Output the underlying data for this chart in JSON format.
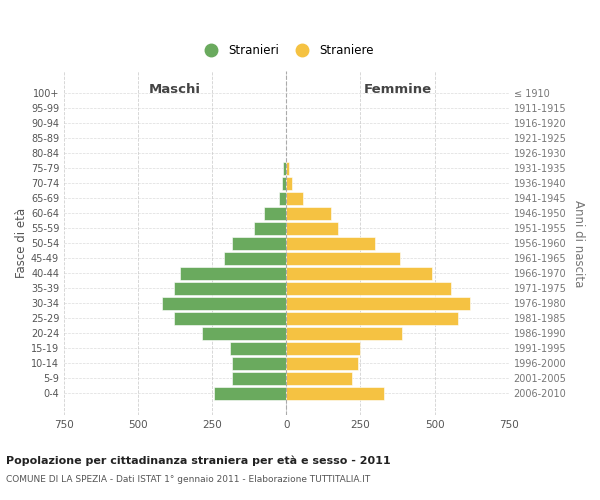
{
  "age_groups": [
    "0-4",
    "5-9",
    "10-14",
    "15-19",
    "20-24",
    "25-29",
    "30-34",
    "35-39",
    "40-44",
    "45-49",
    "50-54",
    "55-59",
    "60-64",
    "65-69",
    "70-74",
    "75-79",
    "80-84",
    "85-89",
    "90-94",
    "95-99",
    "100+"
  ],
  "birth_years": [
    "2006-2010",
    "2001-2005",
    "1996-2000",
    "1991-1995",
    "1986-1990",
    "1981-1985",
    "1976-1980",
    "1971-1975",
    "1966-1970",
    "1961-1965",
    "1956-1960",
    "1951-1955",
    "1946-1950",
    "1941-1945",
    "1936-1940",
    "1931-1935",
    "1926-1930",
    "1921-1925",
    "1916-1920",
    "1911-1915",
    "≤ 1910"
  ],
  "males": [
    245,
    185,
    185,
    190,
    285,
    380,
    420,
    380,
    360,
    210,
    185,
    110,
    75,
    25,
    15,
    10,
    0,
    0,
    0,
    0,
    0
  ],
  "females": [
    330,
    220,
    240,
    250,
    390,
    580,
    620,
    555,
    490,
    385,
    300,
    175,
    150,
    55,
    20,
    10,
    0,
    0,
    0,
    0,
    0
  ],
  "male_color": "#6aaa5e",
  "female_color": "#f5c242",
  "bar_edge_color": "white",
  "grid_color": "#cccccc",
  "bg_color": "#ffffff",
  "title": "Popolazione per cittadinanza straniera per età e sesso - 2011",
  "subtitle": "COMUNE DI LA SPEZIA - Dati ISTAT 1° gennaio 2011 - Elaborazione TUTTITALIA.IT",
  "left_label": "Maschi",
  "right_label": "Femmine",
  "ylabel": "Fasce di età",
  "ylabel_right": "Anni di nascita",
  "legend_male": "Stranieri",
  "legend_female": "Straniere",
  "xlim": 750
}
